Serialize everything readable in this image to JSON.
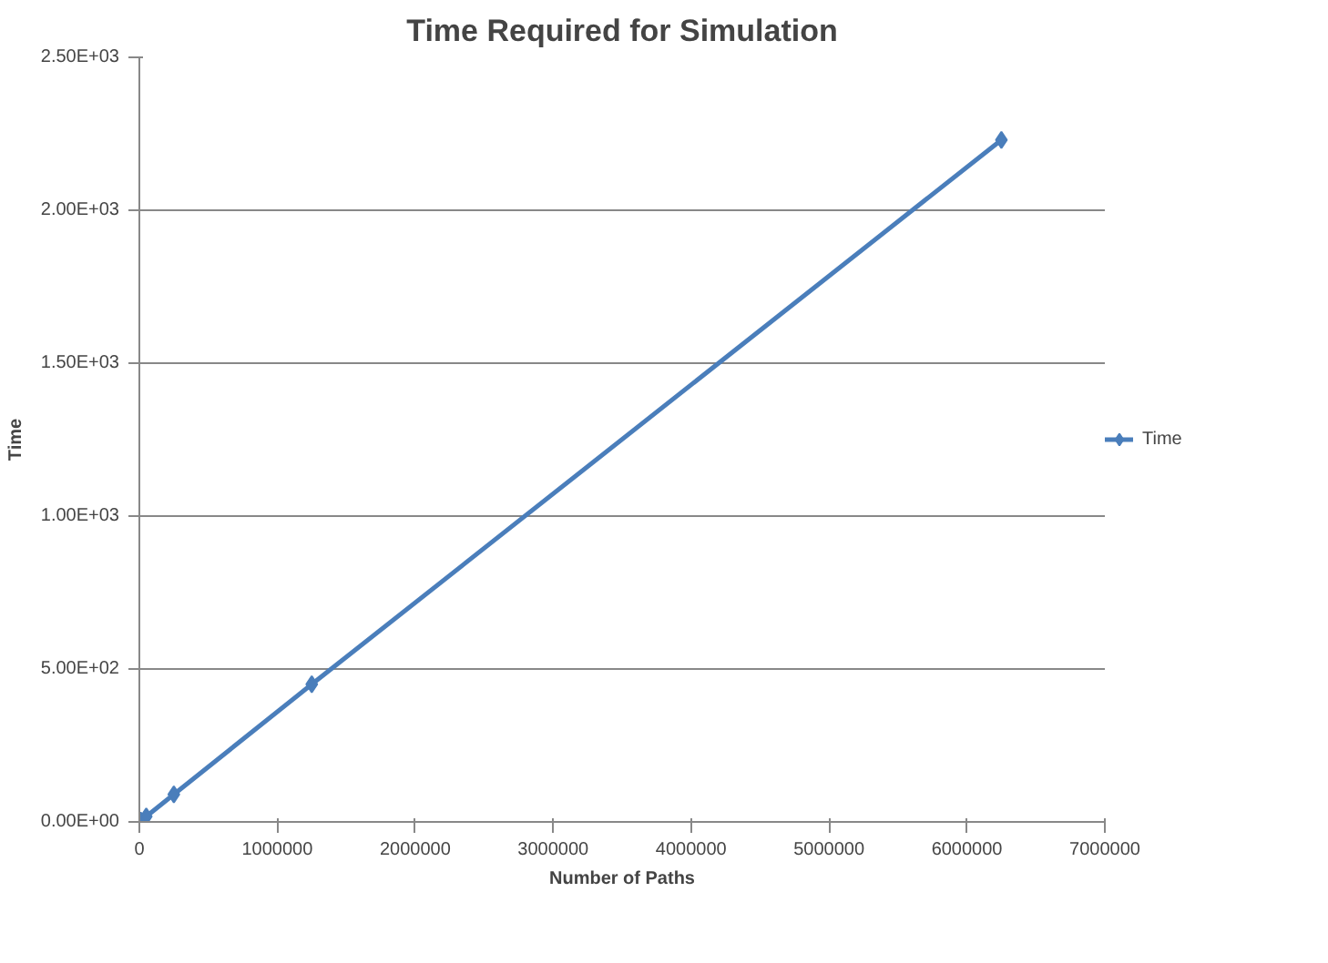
{
  "chart_data": {
    "type": "line",
    "title": "Time Required for Simulation",
    "xlabel": "Number of Paths",
    "ylabel": "Time",
    "x": [
      10000,
      50000,
      250000,
      1250000,
      6250000
    ],
    "series": [
      {
        "name": "Time",
        "color": "#4a7ebb",
        "values": [
          4,
          18,
          90,
          450,
          2230
        ]
      }
    ],
    "xlim": [
      0,
      7000000
    ],
    "xticks": [
      0,
      1000000,
      2000000,
      3000000,
      4000000,
      5000000,
      6000000,
      7000000
    ],
    "ylim": [
      0,
      2500
    ],
    "yticks": [
      {
        "value": 0,
        "label": "0.00E+00"
      },
      {
        "value": 500,
        "label": "5.00E+02"
      },
      {
        "value": 1000,
        "label": "1.00E+03"
      },
      {
        "value": 1500,
        "label": "1.50E+03"
      },
      {
        "value": 2000,
        "label": "2.00E+03"
      },
      {
        "value": 2500,
        "label": "2.50E+03"
      }
    ],
    "grid": "y",
    "legend": "right",
    "marker": "diamond",
    "line_style": "solid"
  }
}
